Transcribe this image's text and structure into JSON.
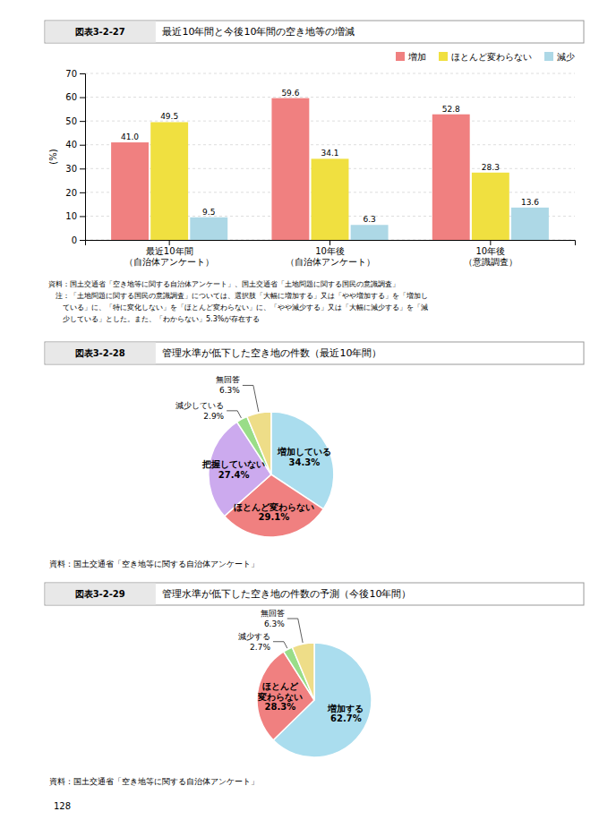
{
  "chart_data": [
    {
      "type": "bar",
      "subtitle": "図表3-2-27",
      "title": "最近10年間と今後10年間の空き地等の増減",
      "ylabel": "(%)",
      "categories": [
        "最近10年間\n（自治体アンケート）",
        "10年後\n（自治体アンケート）",
        "10年後\n（意識調査）"
      ],
      "series": [
        {
          "name": "増加",
          "color": "#f08080",
          "values": [
            41.0,
            59.6,
            52.8
          ],
          "value_labels": [
            "41.0",
            "59.6",
            "52.8"
          ]
        },
        {
          "name": "ほとんど変わらない",
          "color": "#f0e040",
          "values": [
            49.5,
            34.1,
            28.3
          ],
          "value_labels": [
            "49.5",
            "34.1",
            "28.3"
          ]
        },
        {
          "name": "減少",
          "color": "#add8e6",
          "values": [
            9.5,
            6.3,
            13.6
          ],
          "value_labels": [
            "9.5",
            "6.3",
            "13.6"
          ]
        }
      ],
      "ylim": [
        0,
        70
      ],
      "yticks": [
        0,
        10,
        20,
        30,
        40,
        50,
        60,
        70
      ],
      "grid": true,
      "legend": "upper right",
      "data_labels": true,
      "annotations": [
        "資料：国土交通省「空き地等に関する自治体アンケート」、国土交通省「土地問題に関する国民の意識調査」",
        "　注：「土地問題に関する国民の意識調査」については、選択肢「大幅に増加する」又は「やや増加する」を「増加し",
        "　　ている」に、「特に変化しない」を「ほとんど変わらない」に、「やや減少する」又は「大幅に減少する」を「減",
        "　　少している」とした。また、「わからない」5.3%が存在する"
      ]
    },
    {
      "type": "pie",
      "subtitle": "図表3-2-28",
      "title": "管理水準が低下した空き地の件数（最近10年間）",
      "categories": [
        "増加している",
        "ほとんど変わらない",
        "把握していない",
        "減少している",
        "無回答"
      ],
      "values": [
        34.3,
        29.1,
        27.4,
        2.9,
        6.3
      ],
      "value_labels": [
        "34.3%",
        "29.1%",
        "27.4%",
        "2.9%",
        "6.3%"
      ],
      "colors": [
        "#aaddee",
        "#f08080",
        "#ccaaee",
        "#99dd88",
        "#eedd88"
      ],
      "data_labels": true,
      "annotations": [
        "資料：国土交通省「空き地等に関する自治体アンケート」"
      ]
    },
    {
      "type": "pie",
      "subtitle": "図表3-2-29",
      "title": "管理水準が低下した空き地の件数の予測（今後10年間）",
      "categories": [
        "増加する",
        "ほとんど\n変わらない",
        "減少する",
        "無回答"
      ],
      "values": [
        62.7,
        28.3,
        2.7,
        6.3
      ],
      "value_labels": [
        "62.7%",
        "28.3%",
        "2.7%",
        "6.3%"
      ],
      "colors": [
        "#aaddee",
        "#f08080",
        "#99dd88",
        "#eedd88"
      ],
      "data_labels": true,
      "annotations": [
        "資料：国土交通省「空き地等に関する自治体アンケート」",
        "128"
      ]
    }
  ]
}
